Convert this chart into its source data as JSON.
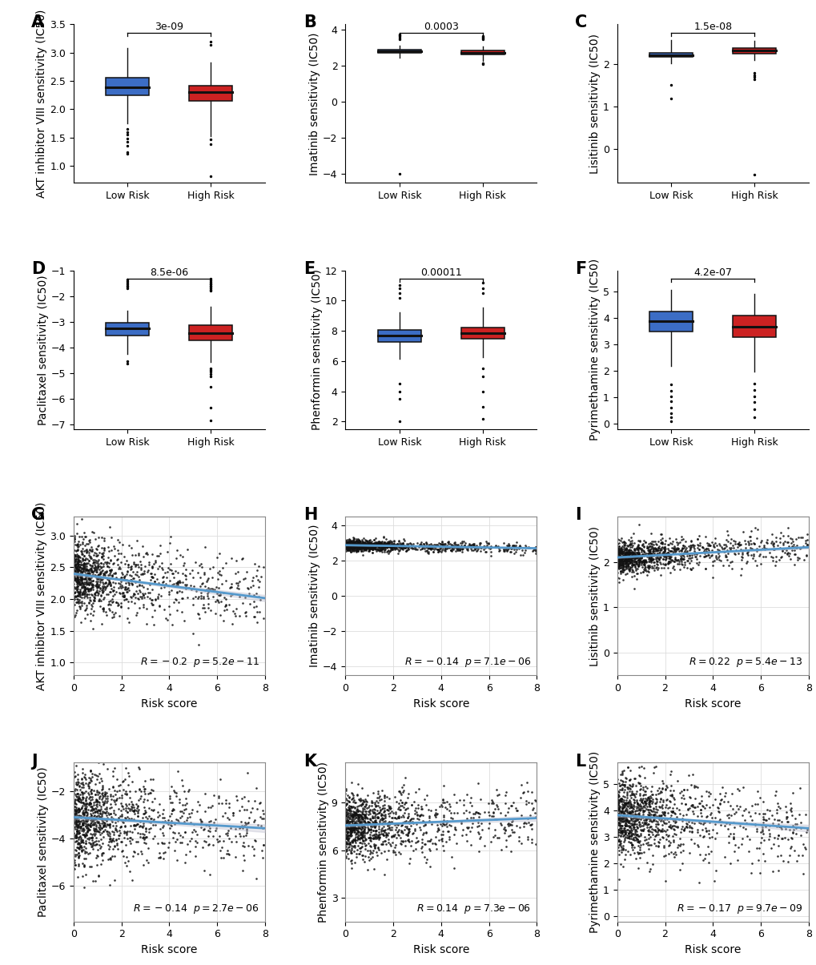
{
  "box_plots": [
    {
      "label": "A",
      "ylabel": "AKT inhibitor VIII sensitivity (IC50)",
      "pvalue": "3e-09",
      "low_risk": {
        "q1": 2.25,
        "median": 2.38,
        "q3": 2.55,
        "whisker_low": 1.75,
        "whisker_high": 3.08,
        "outliers": [
          1.65,
          1.6,
          1.55,
          1.48,
          1.42,
          1.35,
          1.25,
          1.22
        ]
      },
      "high_risk": {
        "q1": 2.15,
        "median": 2.3,
        "q3": 2.42,
        "whisker_low": 1.52,
        "whisker_high": 2.83,
        "outliers": [
          1.47,
          1.38,
          0.82,
          3.14,
          3.19
        ]
      },
      "ylim": [
        0.7,
        3.5
      ]
    },
    {
      "label": "B",
      "ylabel": "Imatinib sensitivity (IC50)",
      "pvalue": "0.0003",
      "low_risk": {
        "q1": 2.72,
        "median": 2.8,
        "q3": 2.88,
        "whisker_low": 2.42,
        "whisker_high": 3.1,
        "outliers": [
          -4.0,
          3.48,
          3.55,
          3.62,
          3.7,
          3.75
        ]
      },
      "high_risk": {
        "q1": 2.62,
        "median": 2.73,
        "q3": 2.83,
        "whisker_low": 2.28,
        "whisker_high": 3.08,
        "outliers": [
          2.08,
          2.13,
          3.48,
          3.52,
          3.56,
          3.6,
          3.65
        ]
      },
      "ylim": [
        -4.5,
        4.3
      ]
    },
    {
      "label": "C",
      "ylabel": "Lisitinib sensitivity (IC50)",
      "pvalue": "1.5e-08",
      "low_risk": {
        "q1": 2.17,
        "median": 2.22,
        "q3": 2.28,
        "whisker_low": 2.02,
        "whisker_high": 2.58,
        "outliers": [
          1.52,
          1.2
        ]
      },
      "high_risk": {
        "q1": 2.26,
        "median": 2.33,
        "q3": 2.39,
        "whisker_low": 2.1,
        "whisker_high": 2.56,
        "outliers": [
          1.8,
          1.75,
          1.7,
          1.65,
          -0.6
        ]
      },
      "ylim": [
        -0.8,
        2.95
      ]
    },
    {
      "label": "D",
      "ylabel": "Paclitaxel sensitivity (IC50)",
      "pvalue": "8.5e-06",
      "low_risk": {
        "q1": -3.55,
        "median": -3.28,
        "q3": -3.05,
        "whisker_low": -4.25,
        "whisker_high": -2.58,
        "outliers": [
          -4.55,
          -4.65,
          -1.35,
          -1.42,
          -1.48,
          -1.55,
          -1.6,
          -1.65,
          -1.7
        ]
      },
      "high_risk": {
        "q1": -3.72,
        "median": -3.45,
        "q3": -3.15,
        "whisker_low": -4.58,
        "whisker_high": -2.42,
        "outliers": [
          -4.82,
          -4.88,
          -4.95,
          -5.05,
          -5.15,
          -5.55,
          -6.35,
          -6.85,
          -1.32,
          -1.38,
          -1.44,
          -1.5,
          -1.55,
          -1.6,
          -1.65,
          -1.7,
          -1.75,
          -1.8
        ]
      },
      "ylim": [
        -7.2,
        -1.0
      ]
    },
    {
      "label": "E",
      "ylabel": "Phenformin sensitivity (IC50)",
      "pvalue": "0.00011",
      "low_risk": {
        "q1": 7.28,
        "median": 7.68,
        "q3": 8.05,
        "whisker_low": 6.15,
        "whisker_high": 9.22,
        "outliers": [
          2.0,
          3.5,
          4.0,
          4.5,
          10.2,
          10.5,
          10.8,
          11.0
        ]
      },
      "high_risk": {
        "q1": 7.5,
        "median": 7.87,
        "q3": 8.22,
        "whisker_low": 6.28,
        "whisker_high": 9.55,
        "outliers": [
          2.2,
          3.0,
          4.0,
          5.0,
          5.5,
          10.5,
          10.8,
          11.2
        ]
      },
      "ylim": [
        1.5,
        12.0
      ]
    },
    {
      "label": "F",
      "ylabel": "Pyrimethamine sensitivity (IC50)",
      "pvalue": "4.2e-07",
      "low_risk": {
        "q1": 3.5,
        "median": 3.88,
        "q3": 4.25,
        "whisker_low": 2.2,
        "whisker_high": 5.05,
        "outliers": [
          0.1,
          0.25,
          0.4,
          0.6,
          0.85,
          1.05,
          1.25,
          1.5
        ]
      },
      "high_risk": {
        "q1": 3.28,
        "median": 3.68,
        "q3": 4.08,
        "whisker_low": 1.98,
        "whisker_high": 4.92,
        "outliers": [
          0.25,
          0.55,
          0.82,
          1.05,
          1.28,
          1.52
        ]
      },
      "ylim": [
        -0.2,
        5.8
      ]
    }
  ],
  "scatter_plots": [
    {
      "label": "G",
      "xlabel": "Risk score",
      "ylabel": "AKT inhibitor VIII sensitivity (IC50)",
      "r_str": "R=-0.2",
      "p_str": "p=5.2e-11",
      "xlim": [
        0,
        8
      ],
      "ylim": [
        0.8,
        3.3
      ],
      "yticks": [
        1.0,
        1.5,
        2.0,
        2.5,
        3.0
      ],
      "xticks": [
        0,
        2,
        4,
        6,
        8
      ],
      "slope": -0.048,
      "intercept": 2.4,
      "noise": 0.28
    },
    {
      "label": "H",
      "xlabel": "Risk score",
      "ylabel": "Imatinib sensitivity (IC50)",
      "r_str": "R=-0.14",
      "p_str": "p=7.1e-06",
      "xlim": [
        0,
        8
      ],
      "ylim": [
        -4.5,
        4.5
      ],
      "yticks": [
        -4,
        -2,
        0,
        2,
        4
      ],
      "xticks": [
        0,
        2,
        4,
        6,
        8
      ],
      "slope": -0.022,
      "intercept": 2.88,
      "noise": 0.15
    },
    {
      "label": "I",
      "xlabel": "Risk score",
      "ylabel": "Lisitinib sensitivity (IC50)",
      "r_str": "R=0.22",
      "p_str": "p=5.4e-13",
      "xlim": [
        0,
        8
      ],
      "ylim": [
        -0.5,
        3.0
      ],
      "yticks": [
        0,
        1,
        2
      ],
      "xticks": [
        0,
        2,
        4,
        6,
        8
      ],
      "slope": 0.028,
      "intercept": 2.1,
      "noise": 0.18
    },
    {
      "label": "J",
      "xlabel": "Risk score",
      "ylabel": "Paclitaxel sensitivity (IC50)",
      "r_str": "R=-0.14",
      "p_str": "p=2.7e-06",
      "xlim": [
        0,
        8
      ],
      "ylim": [
        -7.5,
        -0.8
      ],
      "yticks": [
        -6,
        -4,
        -2
      ],
      "xticks": [
        0,
        2,
        4,
        6,
        8
      ],
      "slope": -0.058,
      "intercept": -3.1,
      "noise": 0.95
    },
    {
      "label": "K",
      "xlabel": "Risk score",
      "ylabel": "Phenformin sensitivity (IC50)",
      "r_str": "R=0.14",
      "p_str": "p=7.3e-06",
      "xlim": [
        0,
        8
      ],
      "ylim": [
        1.5,
        11.5
      ],
      "yticks": [
        3,
        6,
        9
      ],
      "xticks": [
        0,
        2,
        4,
        6,
        8
      ],
      "slope": 0.058,
      "intercept": 7.55,
      "noise": 0.95
    },
    {
      "label": "L",
      "xlabel": "Risk score",
      "ylabel": "Pyrimethamine sensitivity (IC50)",
      "r_str": "R=-0.17",
      "p_str": "p=9.7e-09",
      "xlim": [
        0,
        8
      ],
      "ylim": [
        -0.2,
        5.8
      ],
      "yticks": [
        0,
        1,
        2,
        3,
        4,
        5
      ],
      "xticks": [
        0,
        2,
        4,
        6,
        8
      ],
      "slope": -0.062,
      "intercept": 3.82,
      "noise": 0.75
    }
  ],
  "colors": {
    "low_risk": "#3C6DC5",
    "high_risk": "#CC2222",
    "scatter_line": "#5599CC",
    "scatter_ci": "#BBBBCC",
    "scatter_dot": "#111111",
    "box_edge": "#111111",
    "median_line": "#111111"
  },
  "tick_fontsize": 9,
  "axis_label_fontsize": 10,
  "pvalue_fontsize": 9,
  "panel_label_fontsize": 15,
  "annot_fontsize": 9
}
